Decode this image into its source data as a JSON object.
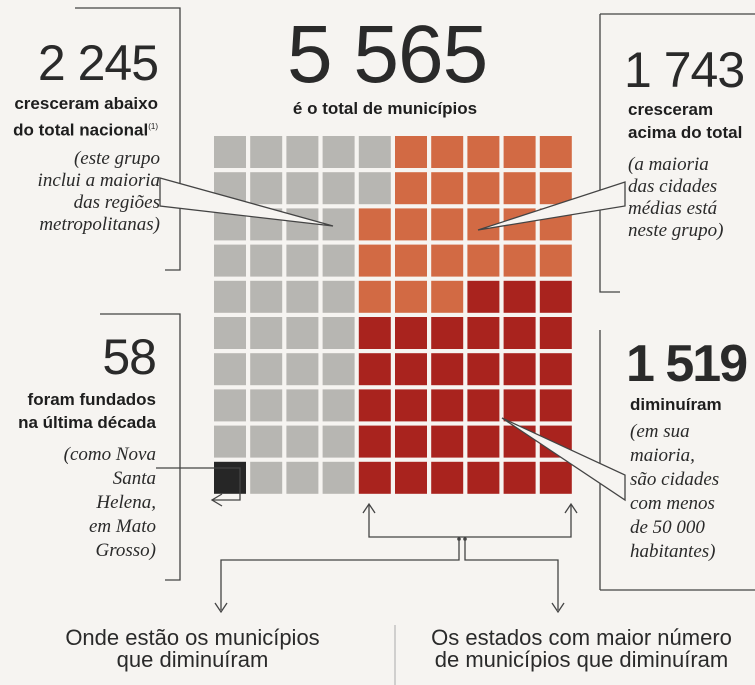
{
  "total": {
    "value": "5 565",
    "label": "é o total de municípios"
  },
  "below": {
    "value": "2 245",
    "label_lines": [
      "cresceram abaixo",
      "do total nacional"
    ],
    "footnote": "(1)",
    "note_lines": [
      "(este grupo",
      "inclui a maioria",
      "das regiões",
      "metropolitanas)"
    ]
  },
  "above": {
    "value": "1 743",
    "label_lines": [
      "cresceram",
      "acima do total"
    ],
    "note_lines": [
      "(a maioria",
      "das cidades",
      "médias está",
      "neste grupo)"
    ]
  },
  "founded": {
    "value": "58",
    "label_lines": [
      "foram fundados",
      "na última década"
    ],
    "note_lines": [
      "(como Nova",
      "Santa",
      "Helena,",
      "em Mato",
      "Grosso)"
    ]
  },
  "decreased": {
    "value": "1 519",
    "label_lines": [
      "diminuíram"
    ],
    "note_lines": [
      "(em sua",
      "maioria,",
      "são cidades",
      "com menos",
      "de 50 000",
      "habitantes)"
    ]
  },
  "bottom": {
    "left_lines": [
      "Onde estão os municípios",
      "que diminuíram"
    ],
    "right_lines": [
      "Os estados com maior número",
      "de municípios que diminuíram"
    ]
  },
  "colors": {
    "below": "#b7b6b2",
    "above": "#d26a44",
    "decreased": "#a9231e",
    "founded": "#262626",
    "line": "#444444"
  }
}
